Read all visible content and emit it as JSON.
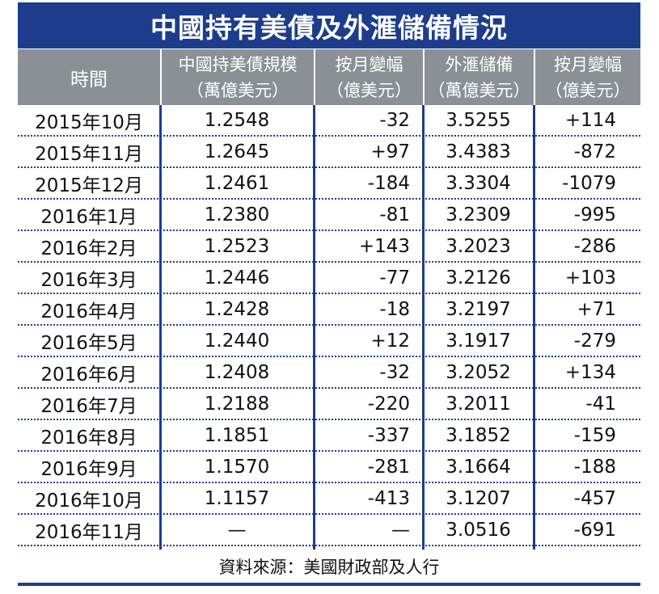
{
  "colors": {
    "title_bg": "#1d3c8c",
    "header_bg": "#8a9096",
    "rule": "#1d3c8c"
  },
  "title": "中國持有美債及外滙儲備情況",
  "columns": [
    {
      "line1": "時間",
      "line2": ""
    },
    {
      "line1": "中國持美債規模",
      "line2": "（萬億美元）"
    },
    {
      "line1": "按月變幅",
      "line2": "（億美元）"
    },
    {
      "line1": "外滙儲備",
      "line2": "（萬億美元）"
    },
    {
      "line1": "按月變幅",
      "line2": "（億美元）"
    }
  ],
  "chart_data": {
    "type": "table",
    "title": "中國持有美債及外滙儲備情況",
    "headers": [
      "時間",
      "中國持美債規模（萬億美元）",
      "按月變幅（億美元）",
      "外滙儲備（萬億美元）",
      "按月變幅（億美元）"
    ],
    "rows": [
      [
        "2015年10月",
        "1.2548",
        "-32",
        "3.5255",
        "+114"
      ],
      [
        "2015年11月",
        "1.2645",
        "+97",
        "3.4383",
        "-872"
      ],
      [
        "2015年12月",
        "1.2461",
        "-184",
        "3.3304",
        "-1079"
      ],
      [
        "2016年1月",
        "1.2380",
        "-81",
        "3.2309",
        "-995"
      ],
      [
        "2016年2月",
        "1.2523",
        "+143",
        "3.2023",
        "-286"
      ],
      [
        "2016年3月",
        "1.2446",
        "-77",
        "3.2126",
        "+103"
      ],
      [
        "2016年4月",
        "1.2428",
        "-18",
        "3.2197",
        "+71"
      ],
      [
        "2016年5月",
        "1.2440",
        "+12",
        "3.1917",
        "-279"
      ],
      [
        "2016年6月",
        "1.2408",
        "-32",
        "3.2052",
        "+134"
      ],
      [
        "2016年7月",
        "1.2188",
        "-220",
        "3.2011",
        "-41"
      ],
      [
        "2016年8月",
        "1.1851",
        "-337",
        "3.1852",
        "-159"
      ],
      [
        "2016年9月",
        "1.1570",
        "-281",
        "3.1664",
        "-188"
      ],
      [
        "2016年10月",
        "1.1157",
        "-413",
        "3.1207",
        "-457"
      ],
      [
        "2016年11月",
        "—",
        "—",
        "3.0516",
        "-691"
      ]
    ]
  },
  "source": "資料來源：美國財政部及人行"
}
